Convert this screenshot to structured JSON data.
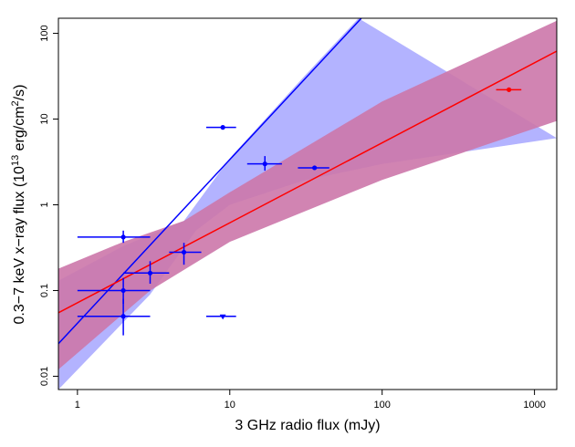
{
  "chart_data": {
    "type": "scatter",
    "xlabel": "3 GHz radio flux (mJy)",
    "ylabel_main": "0.3−7 keV x−ray flux (10",
    "ylabel_exp": "13",
    "ylabel_unit": " erg/cm",
    "ylabel_exp2": "2",
    "ylabel_end": "/s)",
    "x_scale": "log",
    "y_scale": "log",
    "xlim": [
      0.75,
      1400
    ],
    "ylim": [
      0.007,
      150
    ],
    "x_ticks": [
      {
        "value": 1,
        "label": "1"
      },
      {
        "value": 10,
        "label": "10"
      },
      {
        "value": 100,
        "label": "100"
      },
      {
        "value": 1000,
        "label": "1000"
      }
    ],
    "y_ticks": [
      {
        "value": 0.01,
        "label": "0.01"
      },
      {
        "value": 0.1,
        "label": "0.1"
      },
      {
        "value": 1,
        "label": "1"
      },
      {
        "value": 10,
        "label": "10"
      },
      {
        "value": 100,
        "label": "100"
      }
    ],
    "grid": false,
    "colors": {
      "blue": "#0000ff",
      "red": "#ff0000",
      "blue_band": "#b3b3ff",
      "red_band": "#cc77aa"
    },
    "blue_points": [
      {
        "x": 2,
        "y": 0.42,
        "xerr": [
          1,
          3
        ],
        "yerr": [
          0.36,
          0.5
        ]
      },
      {
        "x": 9,
        "y": 8,
        "xerr": [
          7,
          11
        ],
        "yerr": null
      },
      {
        "x": 17,
        "y": 3.0,
        "xerr": [
          13,
          22
        ],
        "yerr": [
          2.5,
          3.7
        ]
      },
      {
        "x": 36,
        "y": 2.7,
        "xerr": [
          28,
          45
        ],
        "yerr": null
      },
      {
        "x": 5,
        "y": 0.28,
        "xerr": [
          4,
          6.5
        ],
        "yerr": [
          0.2,
          0.36
        ]
      },
      {
        "x": 3,
        "y": 0.16,
        "xerr": [
          2,
          4
        ],
        "yerr": [
          0.12,
          0.22
        ]
      },
      {
        "x": 2,
        "y": 0.1,
        "xerr": [
          1,
          3
        ],
        "yerr": [
          0.07,
          0.14
        ]
      },
      {
        "x": 2,
        "y": 0.05,
        "xerr": [
          1,
          3
        ],
        "yerr": [
          0.03,
          0.08
        ]
      }
    ],
    "blue_upper_limits": [
      {
        "x": 9,
        "y": 0.05,
        "xerr": [
          7,
          11
        ]
      }
    ],
    "red_points": [
      {
        "x": 680,
        "y": 22,
        "xerr": [
          560,
          820
        ],
        "yerr": null
      }
    ],
    "blue_fit": {
      "x_start": 0.75,
      "y_start": 0.024,
      "x_end": 73,
      "y_end": 150
    },
    "red_fit": {
      "x_start": 0.75,
      "y_start": 0.055,
      "x_end": 1400,
      "y_end": 62
    },
    "blue_band": {
      "upper": [
        [
          0.75,
          0.13
        ],
        [
          2,
          0.33
        ],
        [
          5,
          0.65
        ],
        [
          10,
          3.5
        ],
        [
          30,
          30
        ],
        [
          70,
          150
        ]
      ],
      "lower": [
        [
          0.75,
          0.007
        ],
        [
          3,
          0.09
        ],
        [
          6,
          0.5
        ],
        [
          10,
          1.0
        ],
        [
          30,
          1.9
        ],
        [
          100,
          3.0
        ],
        [
          1400,
          6
        ]
      ]
    },
    "red_band": {
      "upper": [
        [
          0.75,
          0.18
        ],
        [
          2,
          0.37
        ],
        [
          5,
          0.65
        ],
        [
          10,
          1.4
        ],
        [
          100,
          16
        ],
        [
          1400,
          140
        ]
      ],
      "lower": [
        [
          0.75,
          0.012
        ],
        [
          3,
          0.1
        ],
        [
          10,
          0.37
        ],
        [
          100,
          1.95
        ],
        [
          1400,
          9.5
        ]
      ]
    }
  }
}
